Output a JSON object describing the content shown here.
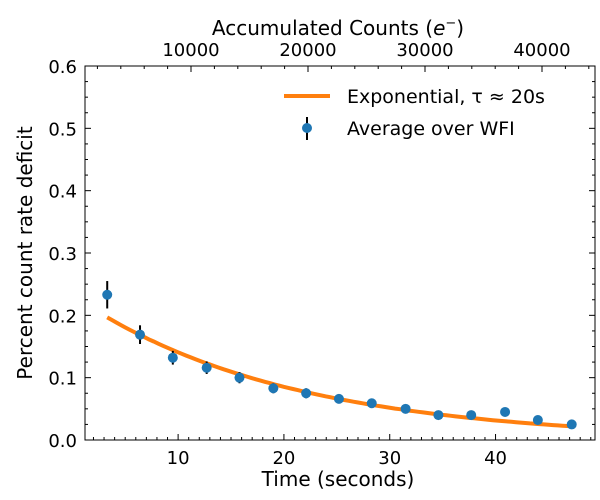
{
  "chart_data": {
    "type": "scatter",
    "title": "",
    "xlabel": "Time (seconds)",
    "ylabel": "Percent count rate deficit",
    "top_xlabel": "Accumulated Counts ($e^-$)",
    "top_xlabel_parts": {
      "main": "Accumulated Counts (",
      "sym": "e",
      "sup": "−",
      ")": ")"
    },
    "xlim": [
      1.2,
      49.4
    ],
    "ylim": [
      0,
      0.6
    ],
    "x_ticks": [
      10,
      20,
      30,
      40
    ],
    "y_ticks": [
      0.0,
      0.1,
      0.2,
      0.3,
      0.4,
      0.5,
      0.6
    ],
    "y_tick_labels": [
      "0.0",
      "0.1",
      "0.2",
      "0.3",
      "0.4",
      "0.5",
      "0.6"
    ],
    "top_xlim": [
      940,
      44530
    ],
    "top_ticks": [
      10000,
      20000,
      30000,
      40000
    ],
    "legend_position": "top-right",
    "series": [
      {
        "name": "Average over WFI",
        "type": "errorbar",
        "color": "#1f77b4",
        "x": [
          3.3,
          6.4,
          9.5,
          12.7,
          15.8,
          19.0,
          22.1,
          25.2,
          28.3,
          31.5,
          34.6,
          37.7,
          40.9,
          44.0,
          47.2
        ],
        "y": [
          0.233,
          0.169,
          0.132,
          0.116,
          0.1,
          0.083,
          0.075,
          0.066,
          0.059,
          0.05,
          0.04,
          0.04,
          0.045,
          0.032,
          0.025
        ],
        "yerr": [
          0.022,
          0.015,
          0.011,
          0.01,
          0.009,
          0.008,
          0.008,
          0.007,
          0.007,
          0.006,
          0.006,
          0.006,
          0.006,
          0.006,
          0.006
        ]
      },
      {
        "name": "Exponential, τ ≈ 20s",
        "type": "line",
        "color": "#ff7f0e",
        "amplitude": 0.232,
        "tau": 20,
        "x_range": [
          3.3,
          47.2
        ]
      }
    ]
  }
}
